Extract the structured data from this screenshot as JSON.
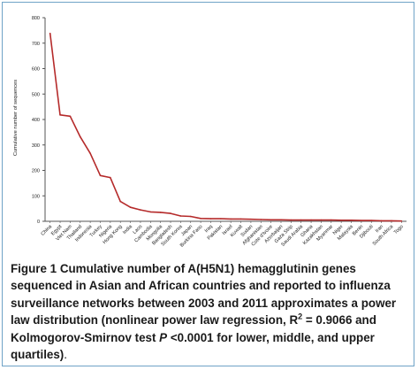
{
  "caption": {
    "label": "Figure 1",
    "text_a": "Cumulative number of A(H5N1) hemagglutinin genes sequenced in Asian and African countries and reported to influenza surveillance networks between 2003 and 2011 approximates a power law distribution (nonlinear power law regression, R",
    "sup": "2",
    "text_b": " = 0.9066 and Kolmogorov-Smirnov test ",
    "italic_p": "P",
    "text_c": " <0.0001 for lower, middle, and upper quartiles)",
    "text_d": "."
  },
  "colors": {
    "line": "#b52a2a",
    "axis": "#555555",
    "border": "#6fa3c7"
  },
  "chart_data": {
    "type": "line",
    "ylabel": "Cumulative number of sequences",
    "ylim": [
      0,
      800
    ],
    "yticks": [
      "0",
      "100",
      "200",
      "300",
      "400",
      "500",
      "600",
      "700",
      "800"
    ],
    "legend": "none",
    "grid": false,
    "categories": [
      "China",
      "Egypt",
      "Viet Nam",
      "Thailand",
      "Indonesia",
      "Turkey",
      "Nigeria",
      "Hong Kong",
      "India",
      "Laos",
      "Cambodia",
      "Mongolia",
      "Bangladesh",
      "South Korea",
      "Japan",
      "Burkina Faso",
      "Iraq",
      "Pakistan",
      "Israel",
      "Kuwait",
      "Sudan",
      "Afghanistan",
      "Cote d'Ivoire",
      "Azerbaijan",
      "Gaza Strip",
      "Saudi Arabia",
      "Ghana",
      "Kazakhstan",
      "Myanmar",
      "Niger",
      "Malaysia",
      "Benin",
      "Djibouti",
      "Iran",
      "South Africa",
      "Togo"
    ],
    "values": [
      738,
      418,
      413,
      332,
      267,
      180,
      172,
      78,
      55,
      45,
      37,
      35,
      31,
      21,
      19,
      11,
      10,
      10,
      9,
      9,
      8,
      7,
      6,
      6,
      5,
      5,
      5,
      5,
      5,
      4,
      4,
      3,
      3,
      2,
      2,
      1
    ]
  }
}
